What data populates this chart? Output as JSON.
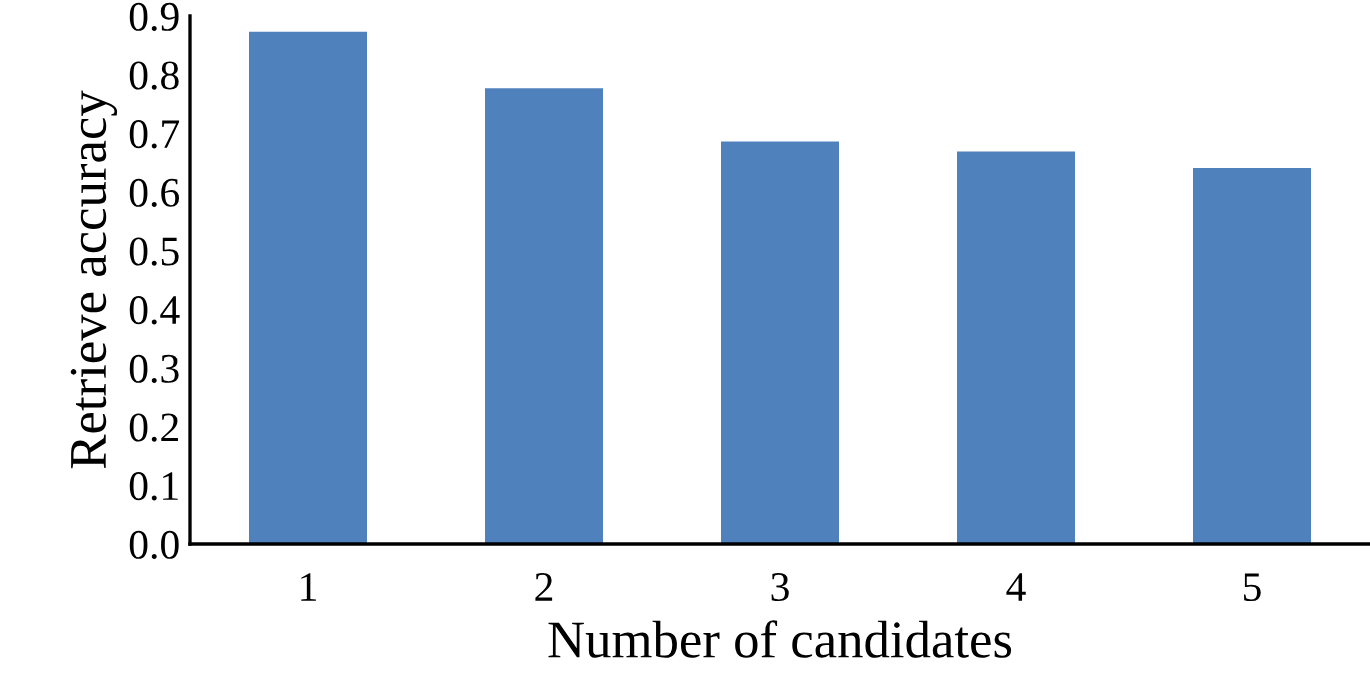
{
  "chart_data": {
    "type": "bar",
    "xlabel": "Number of candidates",
    "ylabel": "Retrieve accuracy",
    "categories": [
      "1",
      "2",
      "3",
      "4",
      "5"
    ],
    "values": [
      0.873,
      0.777,
      0.686,
      0.669,
      0.641
    ],
    "color": "#4f81bd",
    "ylim": [
      0,
      0.9
    ],
    "yticks": [
      {
        "value": 0,
        "label": "0.0"
      },
      {
        "value": 0.1,
        "label": "0.1"
      },
      {
        "value": 0.2,
        "label": "0.2"
      },
      {
        "value": 0.3,
        "label": "0.3"
      },
      {
        "value": 0.4,
        "label": "0.4"
      },
      {
        "value": 0.5,
        "label": "0.5"
      },
      {
        "value": 0.6,
        "label": "0.6"
      },
      {
        "value": 0.7,
        "label": "0.7"
      },
      {
        "value": 0.8,
        "label": "0.8"
      },
      {
        "value": 0.9,
        "label": "0.9"
      }
    ],
    "grid": false,
    "legend": false
  }
}
